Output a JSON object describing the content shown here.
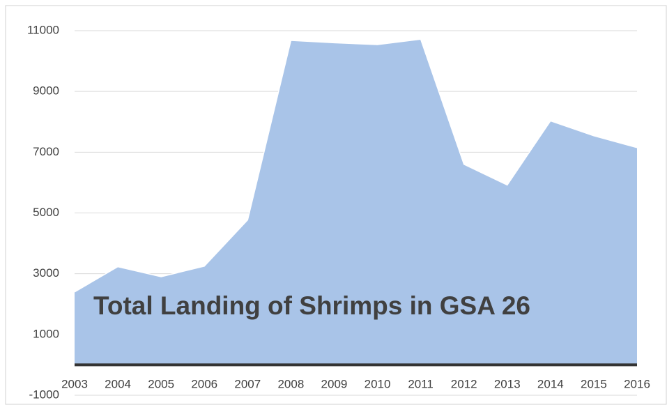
{
  "chart_data": {
    "type": "area",
    "title": "Total Landing of Shrimps in GSA 26",
    "categories": [
      "2003",
      "2004",
      "2005",
      "2006",
      "2007",
      "2008",
      "2009",
      "2010",
      "2011",
      "2012",
      "2013",
      "2014",
      "2015",
      "2016"
    ],
    "series": [
      {
        "name": "Total Landing",
        "color": "#a9c4e8",
        "values": [
          2400,
          3230,
          2900,
          3250,
          4770,
          10680,
          10600,
          10540,
          10720,
          6600,
          5920,
          8030,
          7540,
          7150
        ]
      }
    ],
    "ylim": [
      -1000,
      11000
    ],
    "yticks": [
      -1000,
      1000,
      3000,
      5000,
      7000,
      9000,
      11000
    ],
    "grid": true
  }
}
